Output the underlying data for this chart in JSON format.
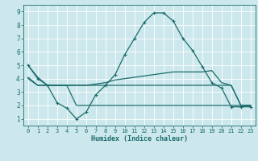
{
  "xlabel": "Humidex (Indice chaleur)",
  "bg_color": "#cce8ec",
  "grid_color": "#ffffff",
  "line_color": "#1a6b6b",
  "line2": {
    "x": [
      0,
      1,
      2,
      3,
      4,
      5,
      6,
      7,
      8,
      9,
      10,
      11,
      12,
      13,
      14,
      15,
      16,
      17,
      18,
      19,
      20,
      21,
      22,
      23
    ],
    "y": [
      5.0,
      4.0,
      3.5,
      2.2,
      1.8,
      1.0,
      1.5,
      2.8,
      3.5,
      4.3,
      5.8,
      7.0,
      8.2,
      8.9,
      8.9,
      8.3,
      7.0,
      6.1,
      4.9,
      3.7,
      3.3,
      1.9,
      1.9,
      1.9
    ]
  },
  "line3": {
    "x": [
      0,
      1,
      2,
      3,
      4,
      5,
      6,
      7,
      8,
      9,
      10,
      11,
      12,
      13,
      14,
      15,
      16,
      17,
      18,
      19,
      20,
      21,
      22,
      23
    ],
    "y": [
      4.1,
      3.5,
      3.5,
      3.5,
      3.5,
      3.5,
      3.5,
      3.6,
      3.7,
      3.9,
      4.0,
      4.1,
      4.2,
      4.3,
      4.4,
      4.5,
      4.5,
      4.5,
      4.5,
      4.6,
      3.7,
      3.5,
      2.0,
      2.0
    ]
  },
  "line1": {
    "x": [
      0,
      1,
      2,
      3,
      4,
      5,
      6,
      7,
      8,
      9,
      10,
      11,
      12,
      13,
      14,
      15,
      16,
      17,
      18,
      19,
      20,
      21,
      22,
      23
    ],
    "y": [
      5.0,
      4.1,
      3.5,
      3.5,
      3.5,
      3.5,
      3.5,
      3.5,
      3.5,
      3.5,
      3.5,
      3.5,
      3.5,
      3.5,
      3.5,
      3.5,
      3.5,
      3.5,
      3.5,
      3.5,
      3.5,
      3.5,
      2.0,
      2.0
    ]
  },
  "line4": {
    "x": [
      0,
      1,
      2,
      3,
      4,
      5,
      6,
      7,
      8,
      9,
      10,
      11,
      12,
      13,
      14,
      15,
      16,
      17,
      18,
      19,
      20,
      21,
      22,
      23
    ],
    "y": [
      4.0,
      3.5,
      3.5,
      3.5,
      3.5,
      2.0,
      2.0,
      2.0,
      2.0,
      2.0,
      2.0,
      2.0,
      2.0,
      2.0,
      2.0,
      2.0,
      2.0,
      2.0,
      2.0,
      2.0,
      2.0,
      2.0,
      2.0,
      2.0
    ]
  },
  "xlim": [
    -0.5,
    23.5
  ],
  "ylim": [
    0.5,
    9.5
  ],
  "yticks": [
    1,
    2,
    3,
    4,
    5,
    6,
    7,
    8,
    9
  ],
  "xticks": [
    0,
    1,
    2,
    3,
    4,
    5,
    6,
    7,
    8,
    9,
    10,
    11,
    12,
    13,
    14,
    15,
    16,
    17,
    18,
    19,
    20,
    21,
    22,
    23
  ],
  "figwidth": 3.2,
  "figheight": 2.0,
  "dpi": 100
}
